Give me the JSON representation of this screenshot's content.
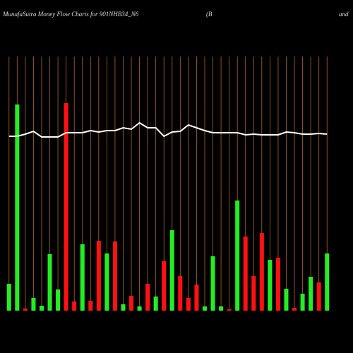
{
  "chart_data": {
    "type": "bar",
    "title": "MunafaSutra  Money Flow  Charts for 901NHB34_N6",
    "subtitle": "(B",
    "subtitle_right": "and",
    "ylim": [
      0,
      300
    ],
    "series": [
      {
        "name": "money flow",
        "type": "bar",
        "values": [
          38,
          292,
          3,
          18,
          7,
          80,
          30,
          294,
          13,
          94,
          14,
          99,
          81,
          98,
          9,
          21,
          6,
          38,
          20,
          70,
          114,
          49,
          18,
          37,
          6,
          77,
          6,
          2,
          156,
          105,
          49,
          110,
          72,
          75,
          31,
          4,
          24,
          48,
          40,
          81
        ],
        "colors": [
          "#22ee22",
          "#22ee22",
          "#ff1111",
          "#22ee22",
          "#22ee22",
          "#22ee22",
          "#22ee22",
          "#ff1111",
          "#ff1111",
          "#22ee22",
          "#ff1111",
          "#ff1111",
          "#22ee22",
          "#ff1111",
          "#22ee22",
          "#ff1111",
          "#22ee22",
          "#ff1111",
          "#22ee22",
          "#ff1111",
          "#22ee22",
          "#ff1111",
          "#ff1111",
          "#ff1111",
          "#22ee22",
          "#22ee22",
          "#22ee22",
          "#ff1111",
          "#22ee22",
          "#ff1111",
          "#ff1111",
          "#ff1111",
          "#22ee22",
          "#ff1111",
          "#22ee22",
          "#ff1111",
          "#22ee22",
          "#22ee22",
          "#ff1111",
          "#22ee22"
        ]
      },
      {
        "name": "price",
        "type": "line",
        "color": "#ffffff",
        "values": [
          247,
          247,
          250,
          254,
          246,
          246,
          246,
          252,
          252,
          252,
          255,
          253,
          255,
          255,
          259,
          257,
          266,
          259,
          259,
          247,
          253,
          254,
          263,
          259,
          255,
          252,
          252,
          252,
          252,
          249,
          250,
          249,
          249,
          249,
          253,
          252,
          250,
          250,
          251,
          250
        ]
      }
    ]
  }
}
